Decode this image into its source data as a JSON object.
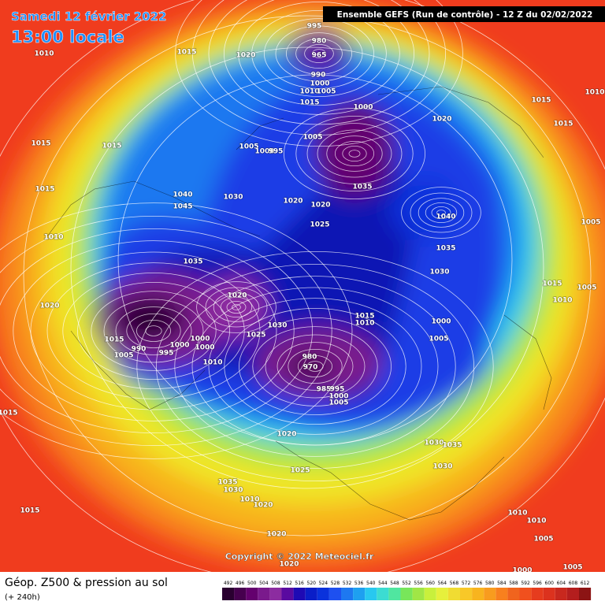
{
  "header": {
    "date": "Samedi 12 février 2022",
    "time": "13:00 locale",
    "model": "Ensemble GEFS  (Run de contrôle)  -  12 Z du 02/02/2022"
  },
  "footer": {
    "title": "Géop. Z500 & pression au sol",
    "lead": "(+ 240h)",
    "copyright": "Copyright © 2022 Meteociel.fr"
  },
  "legend": {
    "levels": [
      492,
      496,
      500,
      504,
      508,
      512,
      516,
      520,
      524,
      528,
      532,
      536,
      540,
      544,
      548,
      552,
      556,
      560,
      564,
      568,
      572,
      576,
      580,
      584,
      588,
      592,
      596,
      600,
      604,
      608,
      612
    ],
    "colors": [
      "#2a0030",
      "#46004e",
      "#64006e",
      "#7a1a8c",
      "#8c2ca0",
      "#5a0aa0",
      "#1e0ab4",
      "#0a1ec8",
      "#0a32dc",
      "#1e50f0",
      "#1e78f0",
      "#1ea0f0",
      "#28c8f0",
      "#3cdcd2",
      "#50e6a0",
      "#78e65a",
      "#a0e646",
      "#c8f03c",
      "#e6f03c",
      "#f0dc32",
      "#f8c828",
      "#f8b41e",
      "#f89c1e",
      "#f8801e",
      "#f0641e",
      "#f0501e",
      "#e63c1e",
      "#dc321e",
      "#c8281e",
      "#b41e1e",
      "#8c1414"
    ]
  },
  "isobar_labels": [
    "1010",
    "1015",
    "1020",
    "995",
    "980",
    "965",
    "990",
    "1000",
    "1010",
    "1005",
    "1015",
    "1000",
    "1020",
    "1015",
    "1015",
    "1010",
    "1015",
    "1015",
    "1005",
    "1005",
    "1000",
    "995",
    "1015",
    "1040",
    "1045",
    "1030",
    "1020",
    "1020",
    "1035",
    "1040",
    "1025",
    "1010",
    "1005",
    "1035",
    "1035",
    "1030",
    "1020",
    "1015",
    "1005",
    "1010",
    "1020",
    "1015",
    "1010",
    "1000",
    "1030",
    "1025",
    "1005",
    "1015",
    "990",
    "1000",
    "1000",
    "1000",
    "995",
    "1005",
    "1010",
    "980",
    "970",
    "985",
    "995",
    "1000",
    "1005",
    "1015",
    "1020",
    "1030",
    "1035",
    "1025",
    "1030",
    "1035",
    "1030",
    "1015",
    "1010",
    "1020",
    "1010",
    "1010",
    "1005",
    "1020",
    "1020",
    "1000",
    "1005"
  ]
}
